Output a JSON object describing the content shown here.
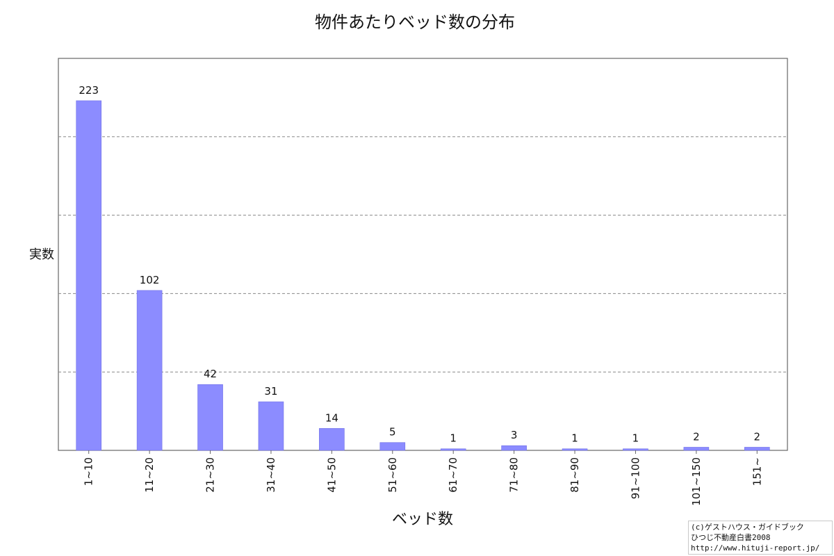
{
  "chart_data": {
    "type": "bar",
    "title": "物件あたりベッド数の分布",
    "xlabel": "ベッド数",
    "ylabel": "実数",
    "categories": [
      "1~10",
      "11~20",
      "21~30",
      "31~40",
      "41~50",
      "51~60",
      "61~70",
      "71~80",
      "81~90",
      "91~100",
      "101~150",
      "151~"
    ],
    "values": [
      223,
      102,
      42,
      31,
      14,
      5,
      1,
      3,
      1,
      1,
      2,
      2
    ],
    "ylim": [
      0,
      250
    ],
    "grid": true,
    "colors": {
      "bar": "#8c8cff",
      "bar_edge": "#6f6fe6",
      "grid": "#888888",
      "frame": "#666666"
    }
  },
  "credit": {
    "line1": "(c)ゲストハウス・ガイドブック",
    "line2": "ひつじ不動産白書2008",
    "line3": "http://www.hituji-report.jp/"
  }
}
